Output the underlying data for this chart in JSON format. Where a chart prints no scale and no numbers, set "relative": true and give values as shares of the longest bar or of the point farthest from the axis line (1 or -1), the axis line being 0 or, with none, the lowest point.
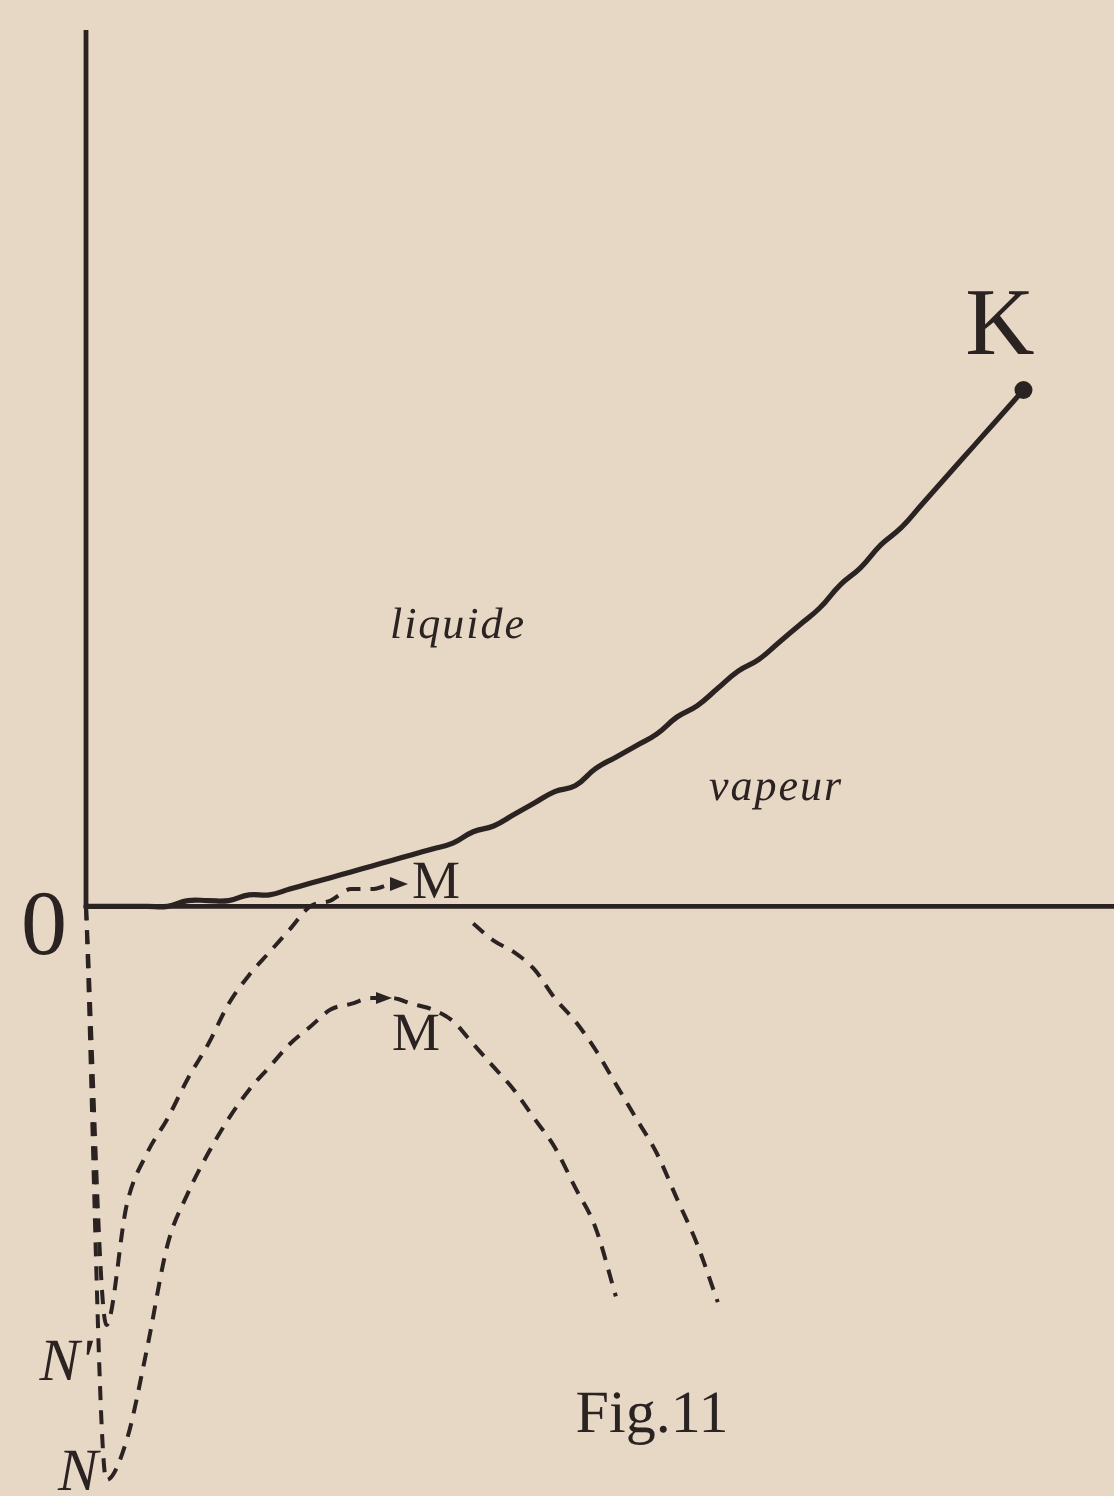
{
  "chart_data": {
    "type": "line",
    "relative": true,
    "categories": [
      null,
      null,
      null,
      null,
      null,
      null,
      null,
      null,
      null,
      null,
      null,
      null,
      null,
      null,
      null,
      null,
      null,
      null,
      null,
      null,
      null,
      null,
      null,
      null,
      null,
      null,
      null,
      null,
      null,
      null,
      null,
      null,
      null,
      null,
      null,
      null,
      null,
      null,
      null,
      null,
      null,
      null,
      null,
      null,
      null,
      null,
      null,
      null,
      null,
      null,
      null
    ],
    "series": [
      {
        "type": "line",
        "color": "#2b2222",
        "line_style": "solid",
        "marker": "none",
        "values": [
          0,
          0,
          0,
          0,
          0,
          0.01,
          0.01,
          0.01,
          0.02,
          0.02,
          0.03,
          0.04,
          0.05,
          0.06,
          0.07,
          0.08,
          0.09,
          0.1,
          0.11,
          0.13,
          0.14,
          0.16,
          0.18,
          0.2,
          0.21,
          0.24,
          0.26,
          0.28,
          0.3,
          0.33,
          0.35,
          0.38,
          0.41,
          0.43,
          0.46,
          0.49,
          0.52,
          0.56,
          0.59,
          0.63,
          0.66,
          0.7,
          0.74,
          0.78,
          0.82,
          0.86,
          0.9,
          null,
          null,
          null,
          null
        ]
      },
      {
        "type": "line",
        "color": "#2b2222",
        "marker": "circle",
        "values": [
          null,
          null,
          null,
          null,
          null,
          null,
          null,
          null,
          null,
          null,
          null,
          null,
          null,
          null,
          null,
          null,
          null,
          null,
          null,
          null,
          null,
          null,
          null,
          null,
          null,
          null,
          null,
          null,
          null,
          null,
          null,
          null,
          null,
          null,
          null,
          null,
          null,
          null,
          null,
          null,
          null,
          null,
          null,
          null,
          null,
          null,
          0.9,
          null,
          null,
          null,
          null
        ]
      },
      {
        "type": "line",
        "color": "#2b2222",
        "line_style": "dashed",
        "marker": "none",
        "values": [
          0,
          -0.73,
          -0.52,
          -0.43,
          -0.37,
          -0.3,
          -0.24,
          -0.17,
          -0.12,
          -0.08,
          -0.04,
          0.0,
          0.01,
          0.03,
          0.03,
          0.04,
          null,
          null,
          null,
          -0.03,
          -0.06,
          -0.08,
          -0.11,
          -0.16,
          -0.2,
          -0.25,
          -0.31,
          -0.37,
          -0.43,
          -0.51,
          -0.59,
          -0.69,
          null,
          null,
          null,
          null,
          null,
          null,
          null,
          null,
          null,
          null,
          null,
          null,
          null,
          null,
          null,
          null,
          null,
          null,
          null
        ]
      },
      {
        "type": "line",
        "color": "#2b2222",
        "line_style": "dashed",
        "marker": "none",
        "values": [
          0,
          -1,
          -0.93,
          -0.77,
          -0.59,
          -0.5,
          -0.43,
          -0.37,
          -0.32,
          -0.28,
          -0.24,
          -0.21,
          -0.18,
          -0.17,
          -0.16,
          -0.16,
          -0.17,
          -0.18,
          -0.2,
          -0.24,
          -0.28,
          -0.32,
          -0.37,
          -0.42,
          -0.49,
          -0.56,
          -0.68,
          null,
          null,
          null,
          null,
          null,
          null,
          null,
          null,
          null,
          null,
          null,
          null,
          null,
          null,
          null,
          null,
          null,
          null,
          null,
          null,
          null,
          null,
          null,
          null
        ]
      }
    ],
    "annotations": [
      "K",
      "liquide",
      "vapeur",
      "0",
      "M",
      "M",
      "N'",
      "N",
      "Fig.11"
    ]
  }
}
